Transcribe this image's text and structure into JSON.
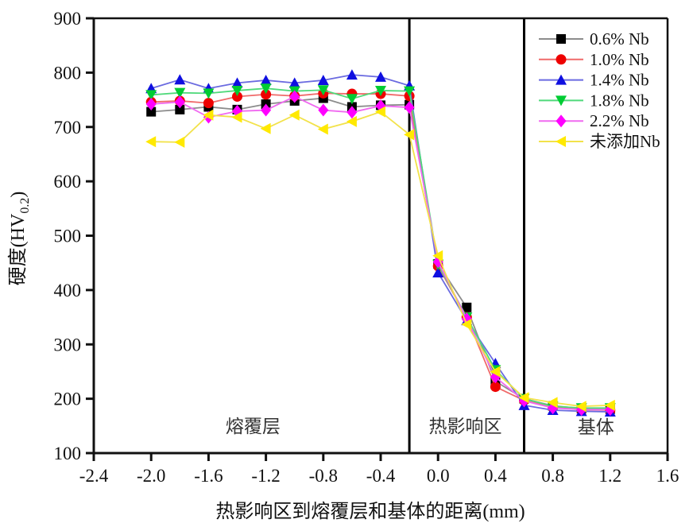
{
  "figure": {
    "background": "#ffffff"
  },
  "chart_data": {
    "type": "line",
    "title": "",
    "xlabel": "热影响区到熔覆层和基体的距离(mm)",
    "ylabel": {
      "prefix": "硬度(HV",
      "sub": "0.2",
      "suffix": ")"
    },
    "xlim": [
      -2.4,
      1.6
    ],
    "ylim": [
      100,
      900
    ],
    "x_tick_labels": [
      "-2.4",
      "-2.0",
      "-1.6",
      "-1.2",
      "-0.8",
      "-0.4",
      "0.0",
      "0.4",
      "0.8",
      "1.2",
      "1.6"
    ],
    "x_tick_values": [
      -2.4,
      -2.0,
      -1.6,
      -1.2,
      -0.8,
      -0.4,
      0.0,
      0.4,
      0.8,
      1.2,
      1.6
    ],
    "y_tick_labels": [
      "100",
      "200",
      "300",
      "400",
      "500",
      "600",
      "700",
      "800",
      "900"
    ],
    "y_tick_values": [
      100,
      200,
      300,
      400,
      500,
      600,
      700,
      800,
      900
    ],
    "grid": false,
    "legend_position": "top-right",
    "x": [
      -2.0,
      -1.8,
      -1.6,
      -1.4,
      -1.2,
      -1.0,
      -0.8,
      -0.6,
      -0.4,
      -0.2,
      0.0,
      0.2,
      0.4,
      0.6,
      0.8,
      1.0,
      1.2
    ],
    "series": [
      {
        "name": "0.6% Nb",
        "marker": "square",
        "color": "#000000",
        "line_color": "#8c8c8c",
        "values": [
          728,
          732,
          737,
          732,
          742,
          748,
          753,
          737,
          740,
          741,
          448,
          368,
          232,
          200,
          187,
          182,
          181
        ]
      },
      {
        "name": "1.0% Nb",
        "marker": "circle",
        "color": "#ee0000",
        "line_color": "#f06a6a",
        "values": [
          746,
          748,
          744,
          756,
          760,
          757,
          762,
          761,
          761,
          757,
          444,
          350,
          222,
          197,
          184,
          180,
          179
        ]
      },
      {
        "name": "1.4% Nb",
        "marker": "triangle-up",
        "color": "#0f0fe0",
        "line_color": "#6a6ae0",
        "values": [
          771,
          787,
          771,
          781,
          786,
          781,
          786,
          796,
          792,
          776,
          432,
          344,
          265,
          188,
          179,
          177,
          176
        ]
      },
      {
        "name": "1.8% Nb",
        "marker": "triangle-down",
        "color": "#00cc33",
        "line_color": "#4fd97a",
        "values": [
          759,
          763,
          762,
          767,
          771,
          766,
          768,
          752,
          767,
          766,
          447,
          350,
          253,
          200,
          186,
          183,
          183
        ]
      },
      {
        "name": "2.2% Nb",
        "marker": "diamond",
        "color": "#ff00ff",
        "line_color": "#f06af0",
        "values": [
          742,
          746,
          718,
          729,
          731,
          756,
          731,
          727,
          739,
          736,
          452,
          347,
          240,
          196,
          183,
          180,
          180
        ]
      },
      {
        "name": "未添加Nb",
        "marker": "triangle-left",
        "color": "#ffe900",
        "line_color": "#f2e24a",
        "values": [
          673,
          672,
          722,
          718,
          697,
          722,
          696,
          710,
          728,
          686,
          463,
          337,
          250,
          202,
          193,
          186,
          188
        ]
      }
    ],
    "boundary_lines": [
      {
        "x": -0.2
      },
      {
        "x": 0.6
      }
    ],
    "region_labels": [
      {
        "text": "熔覆层",
        "x": -1.29,
        "y": 150
      },
      {
        "text": "热影响区",
        "x": 0.19,
        "y": 150
      },
      {
        "text": "基体",
        "x": 1.1,
        "y": 148
      }
    ]
  }
}
